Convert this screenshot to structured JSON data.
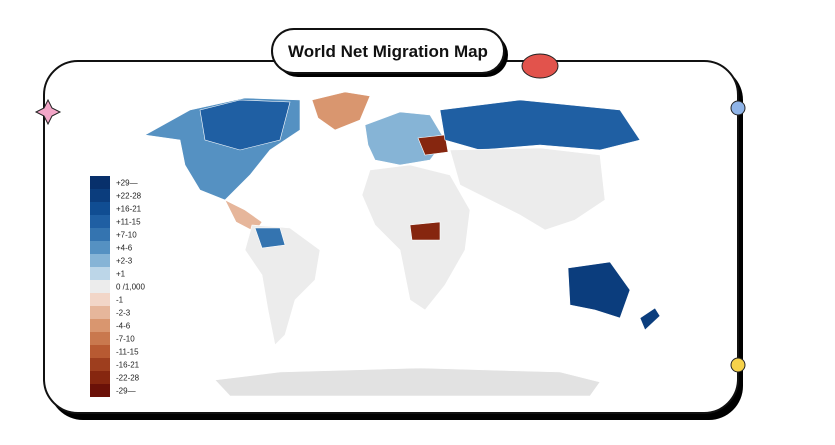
{
  "header": {
    "title": "World Net Migration Map"
  },
  "legend": {
    "items": [
      {
        "label": "+29—",
        "color": "#08306b"
      },
      {
        "label": "+22-28",
        "color": "#0b3d7d"
      },
      {
        "label": "+16-21",
        "color": "#104d92"
      },
      {
        "label": "+11-15",
        "color": "#1f5fa3"
      },
      {
        "label": "+7-10",
        "color": "#3474b0"
      },
      {
        "label": "+4-6",
        "color": "#5591c2"
      },
      {
        "label": "+2-3",
        "color": "#86b4d6"
      },
      {
        "label": "+1",
        "color": "#bcd6e8"
      },
      {
        "label": "0 /1,000",
        "color": "#ececec"
      },
      {
        "label": "-1",
        "color": "#f2d6c8"
      },
      {
        "label": "-2-3",
        "color": "#e6b69b"
      },
      {
        "label": "-4-6",
        "color": "#d9966f"
      },
      {
        "label": "-7-10",
        "color": "#c9784e"
      },
      {
        "label": "-11-15",
        "color": "#b85a32"
      },
      {
        "label": "-16-21",
        "color": "#9e3e1e"
      },
      {
        "label": "-22-28",
        "color": "#86260f"
      },
      {
        "label": "-29—",
        "color": "#6b1108"
      }
    ]
  }
}
